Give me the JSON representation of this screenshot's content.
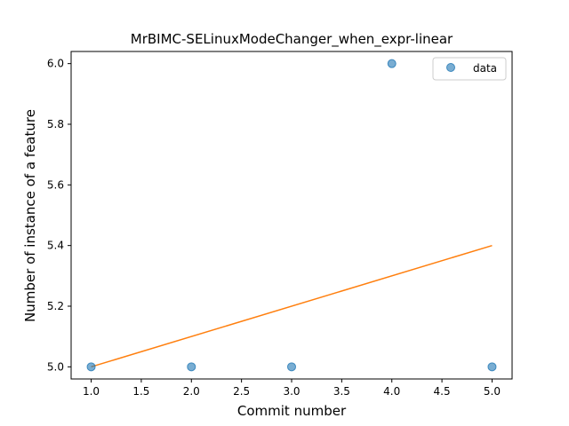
{
  "chart_data": {
    "type": "scatter",
    "title": "MrBIMC-SELinuxModeChanger_when_expr-linear",
    "xlabel": "Commit number",
    "ylabel": "Number of instance of a feature",
    "xlim": [
      0.8,
      5.2
    ],
    "ylim": [
      4.96,
      6.04
    ],
    "xticks": [
      "1.0",
      "1.5",
      "2.0",
      "2.5",
      "3.0",
      "3.5",
      "4.0",
      "4.5",
      "5.0"
    ],
    "yticks": [
      "5.0",
      "5.2",
      "5.4",
      "5.6",
      "5.8",
      "6.0"
    ],
    "grid": false,
    "legend": {
      "position": "top-right",
      "entries": [
        "data"
      ]
    },
    "series": [
      {
        "name": "data",
        "kind": "scatter",
        "color": "#1f77b4",
        "x": [
          1,
          2,
          3,
          4,
          5
        ],
        "y": [
          5,
          5,
          5,
          6,
          5
        ]
      },
      {
        "kind": "line",
        "color": "#ff7f0e",
        "x": [
          1,
          5
        ],
        "y": [
          5.0,
          5.4
        ]
      }
    ]
  }
}
